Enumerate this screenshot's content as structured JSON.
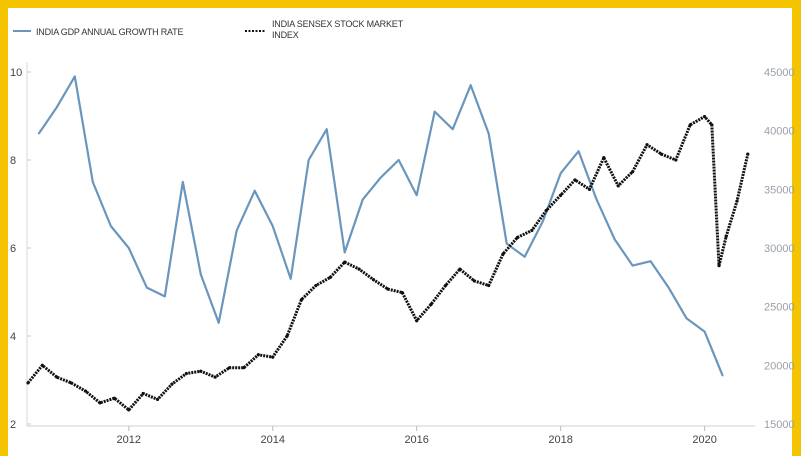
{
  "chart_data": {
    "type": "line",
    "title": "",
    "legend": [
      {
        "label": "INDIA GDP ANNUAL GROWTH RATE",
        "color": "#6a96bd",
        "style": "solid"
      },
      {
        "label_lines": [
          "INDIA SENSEX STOCK MARKET",
          "INDEX"
        ],
        "color": "#111111",
        "style": "dotted"
      }
    ],
    "x_axis": {
      "range": [
        2010.6,
        2020.7
      ],
      "ticks": [
        "2012",
        "2014",
        "2016",
        "2018",
        "2020"
      ]
    },
    "y_left": {
      "range": [
        2,
        10
      ],
      "ticks": [
        "2",
        "4",
        "6",
        "8",
        "10"
      ]
    },
    "y_right": {
      "range": [
        15000,
        45000
      ],
      "ticks": [
        "15000",
        "20000",
        "25000",
        "30000",
        "35000",
        "40000",
        "45000"
      ]
    },
    "series": [
      {
        "name": "INDIA GDP ANNUAL GROWTH RATE",
        "axis": "left",
        "color": "#6a96bd",
        "x": [
          2010.75,
          2011.0,
          2011.25,
          2011.5,
          2011.75,
          2012.0,
          2012.25,
          2012.5,
          2012.75,
          2013.0,
          2013.25,
          2013.5,
          2013.75,
          2014.0,
          2014.25,
          2014.5,
          2014.75,
          2015.0,
          2015.25,
          2015.5,
          2015.75,
          2016.0,
          2016.25,
          2016.5,
          2016.75,
          2017.0,
          2017.25,
          2017.5,
          2017.75,
          2018.0,
          2018.25,
          2018.5,
          2018.75,
          2019.0,
          2019.25,
          2019.5,
          2019.75,
          2020.0,
          2020.25
        ],
        "y": [
          8.6,
          9.2,
          9.9,
          7.5,
          6.5,
          6.0,
          5.1,
          4.9,
          7.5,
          5.4,
          4.3,
          6.4,
          7.3,
          6.5,
          5.3,
          8.0,
          8.7,
          5.9,
          7.1,
          7.6,
          8.0,
          7.2,
          9.1,
          8.7,
          9.7,
          8.6,
          6.1,
          5.8,
          6.6,
          7.7,
          8.2,
          7.1,
          6.2,
          5.6,
          5.7,
          5.1,
          4.4,
          4.1,
          3.1
        ]
      },
      {
        "name": "INDIA SENSEX STOCK MARKET INDEX",
        "axis": "right",
        "color": "#111111",
        "x": [
          2010.6,
          2010.8,
          2011.0,
          2011.2,
          2011.4,
          2011.6,
          2011.8,
          2012.0,
          2012.2,
          2012.4,
          2012.6,
          2012.8,
          2013.0,
          2013.2,
          2013.4,
          2013.6,
          2013.8,
          2014.0,
          2014.2,
          2014.4,
          2014.6,
          2014.8,
          2015.0,
          2015.2,
          2015.4,
          2015.6,
          2015.8,
          2016.0,
          2016.2,
          2016.4,
          2016.6,
          2016.8,
          2017.0,
          2017.2,
          2017.4,
          2017.6,
          2017.8,
          2018.0,
          2018.2,
          2018.4,
          2018.6,
          2018.8,
          2019.0,
          2019.2,
          2019.4,
          2019.6,
          2019.8,
          2020.0,
          2020.1,
          2020.2,
          2020.3,
          2020.45,
          2020.6
        ],
        "y": [
          18500,
          20000,
          19000,
          18500,
          17800,
          16800,
          17200,
          16200,
          17600,
          17100,
          18400,
          19300,
          19500,
          19000,
          19800,
          19800,
          20900,
          20700,
          22500,
          25600,
          26800,
          27500,
          28800,
          28200,
          27300,
          26500,
          26200,
          23800,
          25200,
          26800,
          28200,
          27200,
          26800,
          29500,
          30900,
          31500,
          33200,
          34500,
          35800,
          35000,
          37700,
          35300,
          36500,
          38800,
          38000,
          37500,
          40500,
          41200,
          40500,
          28500,
          31000,
          34000,
          38000
        ]
      }
    ]
  }
}
